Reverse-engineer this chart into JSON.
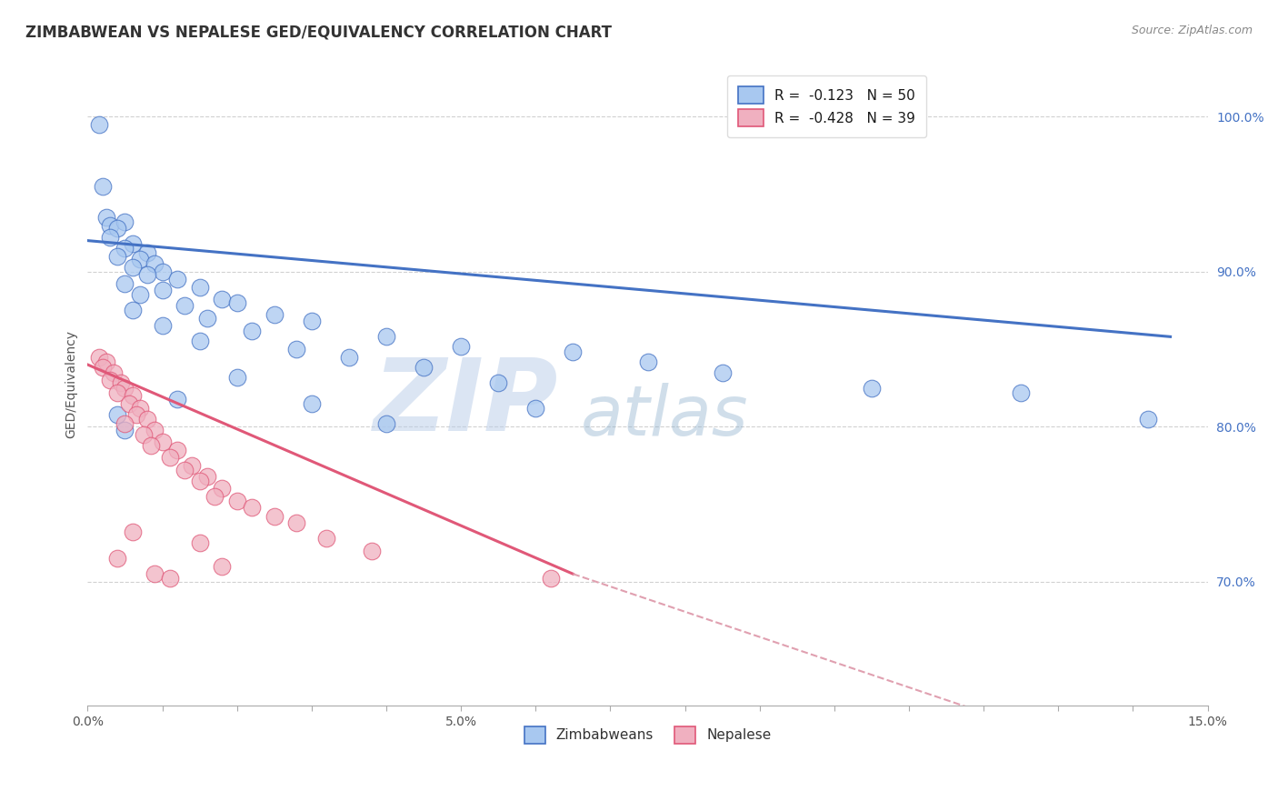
{
  "title": "ZIMBABWEAN VS NEPALESE GED/EQUIVALENCY CORRELATION CHART",
  "source_text": "Source: ZipAtlas.com",
  "ylabel": "GED/Equivalency",
  "legend_label1": "Zimbabweans",
  "legend_label2": "Nepalese",
  "R1": -0.123,
  "N1": 50,
  "R2": -0.428,
  "N2": 39,
  "xlim": [
    0.0,
    15.0
  ],
  "ylim": [
    62.0,
    103.5
  ],
  "xticks": [
    0.0,
    1.0,
    2.0,
    3.0,
    4.0,
    5.0,
    6.0,
    7.0,
    8.0,
    9.0,
    10.0,
    11.0,
    12.0,
    13.0,
    14.0,
    15.0
  ],
  "xtick_labels_positions": [
    0.0,
    5.0,
    15.0
  ],
  "xticklabels": [
    "0.0%",
    "5.0%",
    "15.0%"
  ],
  "yticks": [
    70.0,
    80.0,
    90.0,
    100.0
  ],
  "yticklabels": [
    "70.0%",
    "80.0%",
    "90.0%",
    "100.0%"
  ],
  "color_blue": "#a8c8f0",
  "color_pink": "#f0b0c0",
  "line_color_blue": "#4472c4",
  "line_color_pink": "#e05878",
  "line_color_dashed": "#e0a0b0",
  "background_color": "#ffffff",
  "watermark": "ZIPatlas",
  "watermark_color": "#c8d8ee",
  "title_fontsize": 12,
  "axis_label_fontsize": 10,
  "tick_fontsize": 10,
  "legend_fontsize": 11,
  "blue_points": [
    [
      0.15,
      99.5
    ],
    [
      0.2,
      95.5
    ],
    [
      0.25,
      93.5
    ],
    [
      0.3,
      93.0
    ],
    [
      0.5,
      93.2
    ],
    [
      0.4,
      92.8
    ],
    [
      0.3,
      92.2
    ],
    [
      0.6,
      91.8
    ],
    [
      0.5,
      91.5
    ],
    [
      0.8,
      91.2
    ],
    [
      0.4,
      91.0
    ],
    [
      0.7,
      90.8
    ],
    [
      0.9,
      90.5
    ],
    [
      0.6,
      90.3
    ],
    [
      1.0,
      90.0
    ],
    [
      0.8,
      89.8
    ],
    [
      1.2,
      89.5
    ],
    [
      0.5,
      89.2
    ],
    [
      1.5,
      89.0
    ],
    [
      1.0,
      88.8
    ],
    [
      0.7,
      88.5
    ],
    [
      1.8,
      88.2
    ],
    [
      2.0,
      88.0
    ],
    [
      1.3,
      87.8
    ],
    [
      0.6,
      87.5
    ],
    [
      2.5,
      87.2
    ],
    [
      1.6,
      87.0
    ],
    [
      3.0,
      86.8
    ],
    [
      1.0,
      86.5
    ],
    [
      2.2,
      86.2
    ],
    [
      4.0,
      85.8
    ],
    [
      1.5,
      85.5
    ],
    [
      5.0,
      85.2
    ],
    [
      2.8,
      85.0
    ],
    [
      6.5,
      84.8
    ],
    [
      3.5,
      84.5
    ],
    [
      7.5,
      84.2
    ],
    [
      4.5,
      83.8
    ],
    [
      8.5,
      83.5
    ],
    [
      2.0,
      83.2
    ],
    [
      5.5,
      82.8
    ],
    [
      10.5,
      82.5
    ],
    [
      12.5,
      82.2
    ],
    [
      1.2,
      81.8
    ],
    [
      3.0,
      81.5
    ],
    [
      6.0,
      81.2
    ],
    [
      0.4,
      80.8
    ],
    [
      14.2,
      80.5
    ],
    [
      4.0,
      80.2
    ],
    [
      0.5,
      79.8
    ]
  ],
  "pink_points": [
    [
      0.15,
      84.5
    ],
    [
      0.25,
      84.2
    ],
    [
      0.2,
      83.8
    ],
    [
      0.35,
      83.5
    ],
    [
      0.3,
      83.0
    ],
    [
      0.45,
      82.8
    ],
    [
      0.5,
      82.5
    ],
    [
      0.4,
      82.2
    ],
    [
      0.6,
      82.0
    ],
    [
      0.55,
      81.5
    ],
    [
      0.7,
      81.2
    ],
    [
      0.65,
      80.8
    ],
    [
      0.8,
      80.5
    ],
    [
      0.5,
      80.2
    ],
    [
      0.9,
      79.8
    ],
    [
      0.75,
      79.5
    ],
    [
      1.0,
      79.0
    ],
    [
      0.85,
      78.8
    ],
    [
      1.2,
      78.5
    ],
    [
      1.1,
      78.0
    ],
    [
      1.4,
      77.5
    ],
    [
      1.3,
      77.2
    ],
    [
      1.6,
      76.8
    ],
    [
      1.5,
      76.5
    ],
    [
      1.8,
      76.0
    ],
    [
      1.7,
      75.5
    ],
    [
      2.0,
      75.2
    ],
    [
      2.2,
      74.8
    ],
    [
      2.5,
      74.2
    ],
    [
      2.8,
      73.8
    ],
    [
      0.6,
      73.2
    ],
    [
      3.2,
      72.8
    ],
    [
      1.5,
      72.5
    ],
    [
      3.8,
      72.0
    ],
    [
      0.4,
      71.5
    ],
    [
      1.8,
      71.0
    ],
    [
      0.9,
      70.5
    ],
    [
      1.1,
      70.2
    ],
    [
      6.2,
      70.2
    ]
  ],
  "blue_line_x": [
    0.0,
    14.5
  ],
  "blue_line_y": [
    92.0,
    85.8
  ],
  "pink_line_x": [
    0.0,
    6.5
  ],
  "pink_line_y": [
    84.0,
    70.5
  ],
  "dashed_line_x": [
    6.5,
    14.8
  ],
  "dashed_line_y": [
    70.5,
    57.0
  ]
}
